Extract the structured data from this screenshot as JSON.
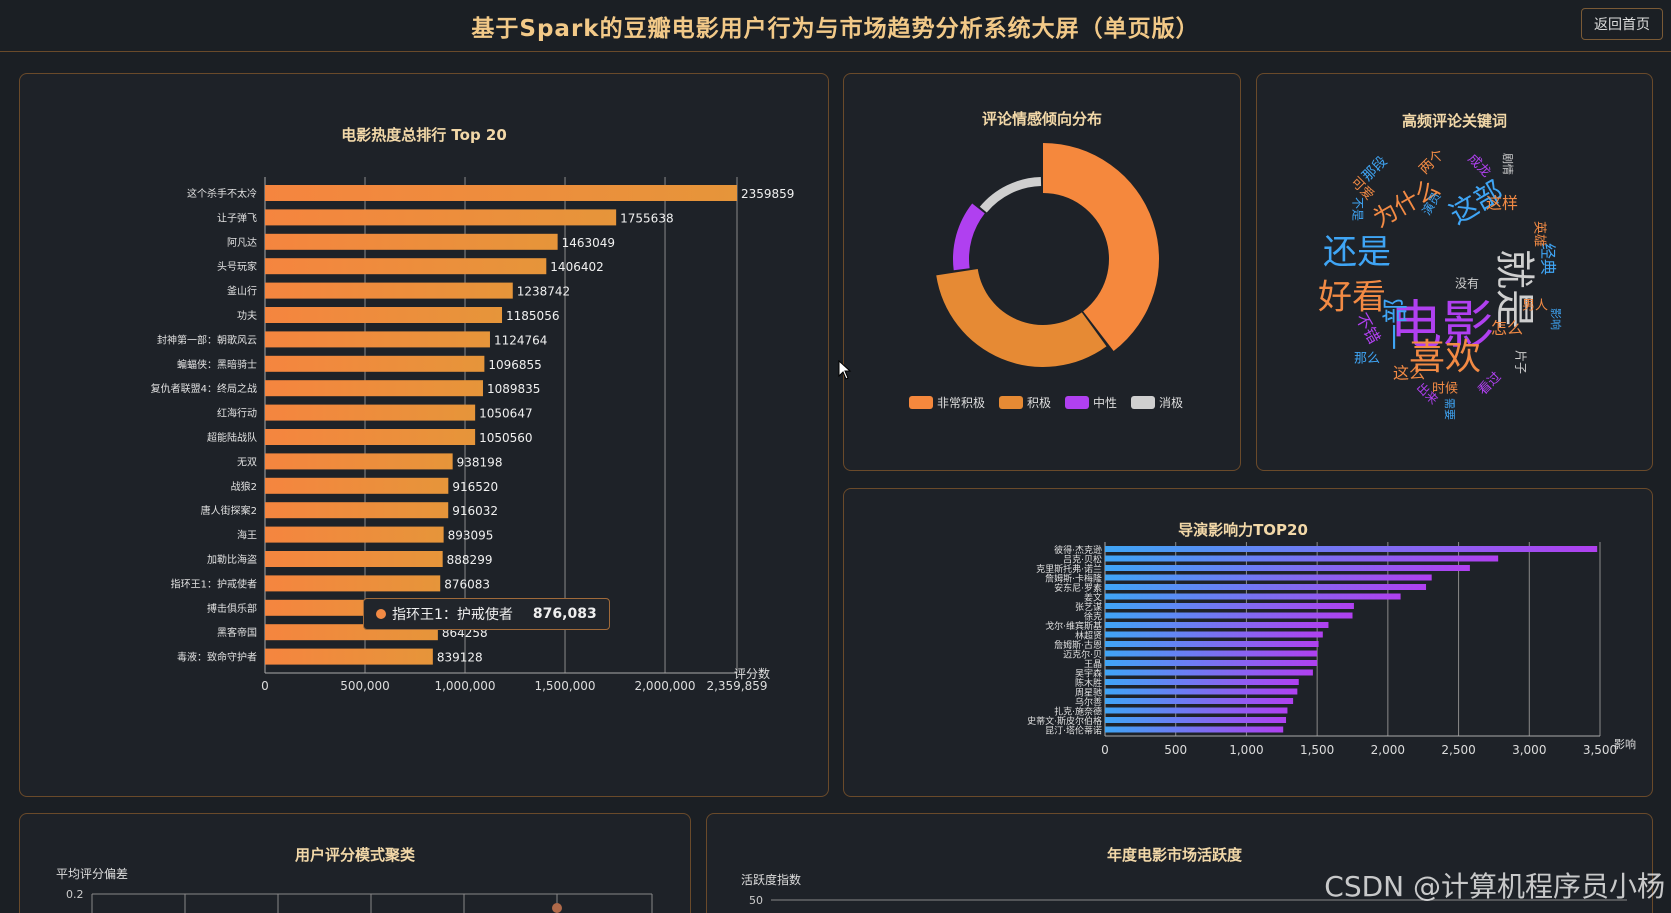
{
  "header": {
    "title": "基于Spark的豆瓣电影用户行为与市场趋势分析系统大屏（单页版）",
    "back_label": "返回首页"
  },
  "watermark": "CSDN @计算机程序员小杨",
  "colors": {
    "accent": "#f28a44",
    "gold": "#f2c988",
    "purple": "#b040f0",
    "blue": "#3fa5f5"
  },
  "tooltip": {
    "name": "指环王1：护戒使者",
    "value": "876,083"
  },
  "chart_data": [
    {
      "type": "bar",
      "orientation": "horizontal",
      "title": "电影热度总排行 Top 20",
      "xlabel": "评分数",
      "xlim": [
        0,
        2359859
      ],
      "xticks": [
        "0",
        "500,000",
        "1,000,000",
        "1,500,000",
        "2,000,000",
        "2,359,859"
      ],
      "categories": [
        "这个杀手不太冷",
        "让子弹飞",
        "阿凡达",
        "头号玩家",
        "釜山行",
        "功夫",
        "封神第一部：朝歌风云",
        "蝙蝠侠：黑暗骑士",
        "复仇者联盟4：终局之战",
        "红海行动",
        "超能陆战队",
        "无双",
        "战狼2",
        "唐人街探案2",
        "海王",
        "加勒比海盗",
        "指环王1：护戒使者",
        "搏击俱乐部",
        "黑客帝国",
        "毒液：致命守护者"
      ],
      "values": [
        2359859,
        1755638,
        1463049,
        1406402,
        1238742,
        1185056,
        1124764,
        1096855,
        1089835,
        1050647,
        1050560,
        938198,
        916520,
        916032,
        893095,
        888299,
        876083,
        869000,
        864258,
        839128
      ],
      "value_labels": [
        "2359859",
        "1755638",
        "1463049",
        "1406402",
        "1238742",
        "1185056",
        "1124764",
        "1096855",
        "1089835",
        "1050647",
        "1050560",
        "938198",
        "916520",
        "916032",
        "893095",
        "888299",
        "876083",
        "",
        "864258",
        "839128"
      ]
    },
    {
      "type": "pie",
      "variant": "donut",
      "title": "评论情感倾向分布",
      "categories": [
        "非常积极",
        "积极",
        "中性",
        "消极"
      ],
      "values": [
        40,
        33,
        13,
        14
      ],
      "colors": [
        "#f5883d",
        "#e68a34",
        "#b040f0",
        "#cfcfcf"
      ]
    },
    {
      "type": "wordcloud",
      "title": "高频评论关键词",
      "words": [
        "电影",
        "就是",
        "还是",
        "好看",
        "喜欢",
        "这部",
        "为什么",
        "一部",
        "这样",
        "经典",
        "怎么",
        "这么",
        "不错",
        "那段",
        "两个",
        "成龙",
        "可爱",
        "不是",
        "演员",
        "男人",
        "那么",
        "时候",
        "看过",
        "影响",
        "片子",
        "出来",
        "需要",
        "英雄",
        "剧情",
        "没有"
      ]
    },
    {
      "type": "bar",
      "orientation": "horizontal",
      "title": "导演影响力TOP20",
      "xlabel": "影响",
      "xlim": [
        0,
        3500
      ],
      "xticks": [
        "0",
        "500",
        "1,000",
        "1,500",
        "2,000",
        "2,500",
        "3,000",
        "3,500"
      ],
      "categories": [
        "彼得·杰克逊",
        "吕克·贝松",
        "克里斯托弗·诺兰",
        "詹姆斯·卡梅隆",
        "安东尼·罗素",
        "姜文",
        "张艺谋",
        "徐克",
        "戈尔·维宾斯基",
        "林超贤",
        "詹姆斯·古恩",
        "迈克尔·贝",
        "王晶",
        "吴宇森",
        "陈木胜",
        "周星驰",
        "乌尔善",
        "扎克·施奈德",
        "史蒂文·斯皮尔伯格",
        "昆汀·塔伦蒂诺"
      ],
      "values": [
        3480,
        2780,
        2580,
        2310,
        2270,
        2090,
        1760,
        1750,
        1580,
        1540,
        1510,
        1500,
        1500,
        1470,
        1370,
        1360,
        1330,
        1290,
        1280,
        1260
      ]
    },
    {
      "type": "scatter",
      "title": "用户评分模式聚类",
      "ylabel": "平均评分偏差",
      "yticks": [
        "0.2"
      ]
    },
    {
      "type": "line",
      "title": "年度电影市场活跃度",
      "ylabel": "活跃度指数",
      "yticks": [
        "50"
      ]
    }
  ]
}
